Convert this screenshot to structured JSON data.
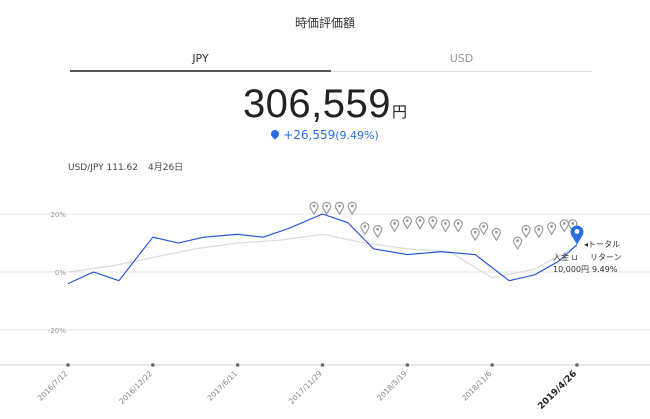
{
  "header": {
    "title": "時価評価額"
  },
  "tabs": [
    {
      "label": "JPY",
      "active": true
    },
    {
      "label": "USD",
      "active": false
    }
  ],
  "valuation": {
    "amount": "306,559",
    "unit": "円",
    "gain": "+26,559",
    "gain_pct": "(9.49%)"
  },
  "fx": {
    "rate": "USD/JPY 111.62",
    "date": "4月26日"
  },
  "colors": {
    "accent": "#2a6de0",
    "total_line": "#1a4fd6",
    "deposit_line": "#dddddd",
    "marker": "#9a9a9a"
  },
  "chart_data": {
    "type": "line",
    "x_ticks": [
      "2016/7/12",
      "2016/12/22",
      "2017/6/11",
      "2017/11/29",
      "2018/5/19",
      "2018/11/6",
      "2019/4/26"
    ],
    "y_ticks": [
      "20%",
      "0%",
      "-20%"
    ],
    "ylim": [
      -30,
      25
    ],
    "series": [
      {
        "name": "トータルリターン",
        "x_idx": [
          0,
          0.3,
          0.6,
          1,
          1.3,
          1.6,
          2,
          2.3,
          2.6,
          3,
          3.3,
          3.6,
          4,
          4.4,
          4.8,
          5.2,
          5.5,
          5.8,
          6
        ],
        "values": [
          -4,
          0,
          -3,
          12,
          10,
          12,
          13,
          12,
          15,
          20,
          17,
          8,
          6,
          7,
          6,
          -3,
          -1,
          4,
          9.5
        ]
      },
      {
        "name": "入金",
        "x_idx": [
          0,
          0.5,
          1,
          1.5,
          2,
          2.5,
          3,
          3.5,
          4,
          4.5,
          5,
          5.5,
          6
        ],
        "values": [
          0,
          2,
          5,
          8,
          10,
          11,
          13,
          10,
          8,
          7,
          -2,
          1,
          9
        ]
      }
    ],
    "markers_x_idx": [
      2.9,
      3.05,
      3.2,
      3.35,
      3.5,
      3.65,
      3.85,
      4,
      4.15,
      4.3,
      4.45,
      4.6,
      4.8,
      4.9,
      5.05,
      5.3,
      5.4,
      5.55,
      5.7,
      5.85,
      5.95
    ],
    "marker_values": [
      20,
      20,
      20,
      20,
      13,
      12,
      14,
      15,
      15,
      15,
      14,
      14,
      11,
      13,
      11,
      8,
      12,
      12,
      13,
      14,
      14
    ]
  },
  "legend": {
    "current": {
      "label_1": "トータル",
      "label_2": "リターン",
      "value": "9.49%"
    },
    "deposit": {
      "label": "入金",
      "value": "10,000円"
    }
  }
}
